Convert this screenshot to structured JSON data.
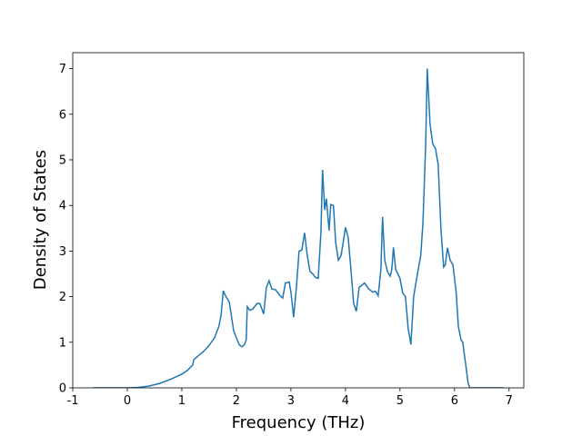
{
  "chart_data": {
    "type": "line",
    "x_label": "Frequency (THz)",
    "y_label": "Density of States",
    "color": "#1f77b4",
    "x": [
      -0.63,
      0,
      0.2,
      0.4,
      0.6,
      0.8,
      1.0,
      1.1,
      1.2,
      1.22,
      1.3,
      1.4,
      1.5,
      1.6,
      1.68,
      1.72,
      1.76,
      1.8,
      1.87,
      1.9,
      1.95,
      2.0,
      2.05,
      2.1,
      2.15,
      2.18,
      2.2,
      2.25,
      2.3,
      2.38,
      2.43,
      2.5,
      2.55,
      2.6,
      2.65,
      2.72,
      2.8,
      2.85,
      2.9,
      2.97,
      3.0,
      3.05,
      3.1,
      3.15,
      3.2,
      3.25,
      3.3,
      3.35,
      3.4,
      3.45,
      3.5,
      3.52,
      3.55,
      3.58,
      3.62,
      3.65,
      3.7,
      3.73,
      3.78,
      3.82,
      3.87,
      3.92,
      3.96,
      4.0,
      4.05,
      4.1,
      4.15,
      4.2,
      4.25,
      4.35,
      4.42,
      4.5,
      4.55,
      4.6,
      4.65,
      4.68,
      4.72,
      4.77,
      4.82,
      4.85,
      4.88,
      4.92,
      5.0,
      5.05,
      5.1,
      5.15,
      5.2,
      5.25,
      5.32,
      5.38,
      5.42,
      5.47,
      5.5,
      5.55,
      5.6,
      5.65,
      5.7,
      5.75,
      5.8,
      5.83,
      5.87,
      5.92,
      5.97,
      6.03,
      6.07,
      6.12,
      6.15,
      6.2,
      6.25,
      6.28,
      6.9
    ],
    "values": [
      0,
      0,
      0.01,
      0.04,
      0.1,
      0.19,
      0.3,
      0.38,
      0.5,
      0.62,
      0.7,
      0.8,
      0.93,
      1.1,
      1.35,
      1.6,
      2.13,
      2.02,
      1.88,
      1.65,
      1.25,
      1.1,
      0.95,
      0.9,
      0.95,
      1.05,
      1.78,
      1.7,
      1.73,
      1.85,
      1.85,
      1.62,
      2.2,
      2.35,
      2.17,
      2.15,
      2.02,
      1.97,
      2.3,
      2.32,
      2.1,
      1.55,
      2.2,
      3.0,
      3.02,
      3.4,
      2.9,
      2.55,
      2.5,
      2.42,
      2.4,
      2.8,
      3.4,
      4.78,
      3.9,
      4.15,
      3.45,
      4.02,
      4.0,
      3.2,
      2.8,
      2.9,
      3.2,
      3.52,
      3.3,
      2.6,
      1.85,
      1.68,
      2.2,
      2.3,
      2.18,
      2.1,
      2.12,
      2.02,
      2.6,
      3.75,
      2.8,
      2.55,
      2.45,
      2.6,
      3.08,
      2.6,
      2.4,
      2.08,
      2.0,
      1.3,
      0.95,
      2.0,
      2.5,
      2.9,
      3.6,
      5.3,
      7.0,
      5.8,
      5.35,
      5.25,
      4.9,
      3.5,
      2.65,
      2.7,
      3.07,
      2.8,
      2.7,
      2.1,
      1.35,
      1.05,
      1.0,
      0.55,
      0.1,
      0,
      0
    ],
    "xlim": [
      -1.0,
      7.27
    ],
    "ylim": [
      0,
      7.35
    ],
    "xticks": [
      -1,
      0,
      1,
      2,
      3,
      4,
      5,
      6,
      7
    ],
    "yticks": [
      0,
      1,
      2,
      3,
      4,
      5,
      6,
      7
    ]
  }
}
